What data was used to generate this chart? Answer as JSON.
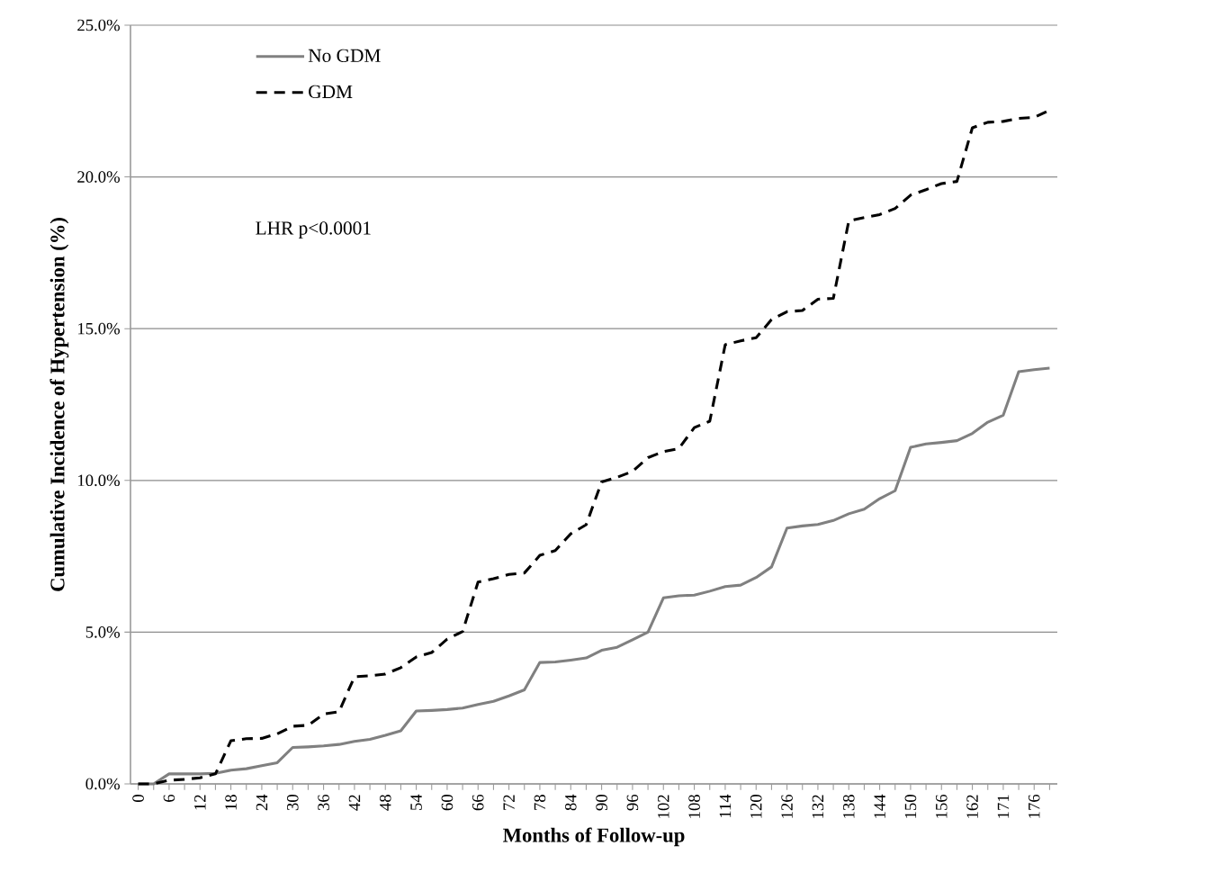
{
  "chart_data": {
    "type": "line",
    "xlabel": "Months of Follow-up",
    "ylabel": "Cumulative Incidence of Hypertension (%)",
    "annotations": [
      "LHR p<0.0001"
    ],
    "categories": [
      "0",
      null,
      "6",
      null,
      "12",
      null,
      "18",
      null,
      "24",
      null,
      "30",
      null,
      "36",
      null,
      "42",
      null,
      "48",
      null,
      "54",
      null,
      "60",
      null,
      "66",
      null,
      "72",
      null,
      "78",
      null,
      "84",
      null,
      "90",
      null,
      "96",
      null,
      "102",
      null,
      "108",
      null,
      "114",
      null,
      "120",
      null,
      "126",
      null,
      "132",
      null,
      "138",
      null,
      "144",
      null,
      "150",
      null,
      "156",
      null,
      "162",
      null,
      "171",
      null,
      "176",
      null
    ],
    "series": [
      {
        "name": "No GDM",
        "color": "#808080",
        "line_style": "solid",
        "values": [
          0,
          0,
          0.33,
          0.33,
          0.33,
          0.35,
          0.45,
          0.5,
          0.6,
          0.7,
          1.2,
          1.22,
          1.25,
          1.3,
          1.4,
          1.47,
          1.6,
          1.75,
          2.4,
          2.42,
          2.45,
          2.5,
          2.62,
          2.72,
          2.9,
          3.1,
          4.0,
          4.02,
          4.08,
          4.15,
          4.4,
          4.5,
          4.75,
          5.0,
          6.13,
          6.2,
          6.22,
          6.35,
          6.5,
          6.55,
          6.8,
          7.15,
          8.43,
          8.5,
          8.55,
          8.68,
          8.9,
          9.05,
          9.4,
          9.66,
          11.09,
          11.2,
          11.25,
          11.31,
          11.55,
          11.92,
          12.15,
          13.58,
          13.65,
          13.7
        ]
      },
      {
        "name": "GDM",
        "color": "#000000",
        "line_style": "dashed",
        "values": [
          0,
          0,
          0.12,
          0.15,
          0.2,
          0.33,
          1.42,
          1.49,
          1.5,
          1.65,
          1.9,
          1.93,
          2.3,
          2.38,
          3.53,
          3.56,
          3.62,
          3.83,
          4.18,
          4.33,
          4.77,
          5.02,
          6.65,
          6.76,
          6.9,
          6.95,
          7.53,
          7.69,
          8.24,
          8.54,
          9.95,
          10.1,
          10.3,
          10.75,
          10.95,
          11.05,
          11.74,
          11.95,
          14.47,
          14.6,
          14.7,
          15.3,
          15.56,
          15.6,
          15.97,
          16.0,
          18.55,
          18.66,
          18.76,
          18.96,
          19.4,
          19.58,
          19.78,
          19.85,
          21.62,
          21.8,
          21.83,
          21.93,
          21.96,
          22.2
        ]
      }
    ],
    "ylim": [
      0,
      25
    ],
    "yticks": [
      {
        "value": 0,
        "label": "0.0%"
      },
      {
        "value": 5,
        "label": "5.0%"
      },
      {
        "value": 10,
        "label": "10.0%"
      },
      {
        "value": 15,
        "label": "15.0%"
      },
      {
        "value": 20,
        "label": "20.0%"
      },
      {
        "value": 25,
        "label": "25.0%"
      }
    ],
    "grid": "y",
    "legend": "top left",
    "marker": "none"
  }
}
